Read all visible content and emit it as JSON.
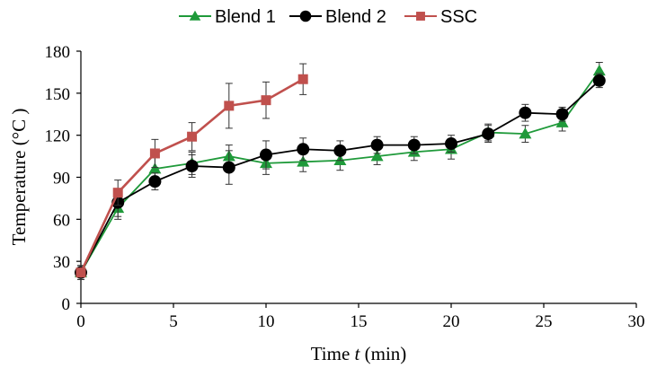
{
  "chart_data": {
    "type": "line",
    "xlabel": "Time",
    "xlabel_var": "t",
    "xlabel_unit": "(min)",
    "ylabel": "Temperature (°C )",
    "xlim": [
      0,
      30
    ],
    "ylim": [
      0,
      180
    ],
    "xticks": [
      0,
      5,
      10,
      15,
      20,
      25,
      30
    ],
    "yticks": [
      0,
      30,
      60,
      90,
      120,
      150,
      180
    ],
    "grid": false,
    "legend_position": "top",
    "series": [
      {
        "name": "Blend 1",
        "color": "#1f9a3a",
        "marker": "triangle",
        "x": [
          0,
          2,
          4,
          6,
          8,
          10,
          12,
          14,
          16,
          18,
          20,
          22,
          24,
          26,
          28
        ],
        "y": [
          22,
          68,
          96,
          100,
          105,
          100,
          101,
          102,
          105,
          108,
          110,
          122,
          121,
          129,
          166
        ],
        "err": [
          5,
          8,
          8,
          8,
          8,
          8,
          7,
          7,
          6,
          6,
          7,
          6,
          6,
          6,
          6
        ]
      },
      {
        "name": "Blend 2",
        "color": "#000000",
        "marker": "circle",
        "x": [
          0,
          2,
          4,
          6,
          8,
          10,
          12,
          14,
          16,
          18,
          20,
          22,
          24,
          26,
          28
        ],
        "y": [
          22,
          72,
          87,
          98,
          97,
          106,
          110,
          109,
          113,
          113,
          114,
          121,
          136,
          135,
          159
        ],
        "err": [
          5,
          10,
          6,
          8,
          12,
          10,
          8,
          7,
          6,
          6,
          6,
          6,
          6,
          5,
          5
        ]
      },
      {
        "name": "SSC",
        "color": "#c0504d",
        "marker": "square",
        "x": [
          0,
          2,
          4,
          6,
          8,
          10,
          12
        ],
        "y": [
          22,
          79,
          107,
          119,
          141,
          145,
          160
        ],
        "err": [
          5,
          9,
          10,
          10,
          16,
          13,
          11
        ]
      }
    ]
  }
}
